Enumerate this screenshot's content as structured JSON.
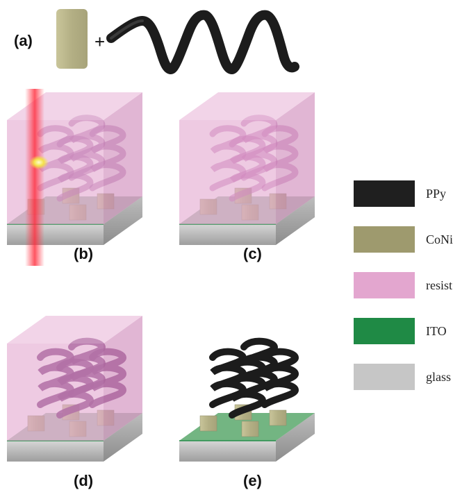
{
  "labels": {
    "a": "(a)",
    "b": "(b)",
    "c": "(c)",
    "d": "(d)",
    "e": "(e)",
    "plus": "+"
  },
  "legend": [
    {
      "name": "PPy",
      "color": "#1f1f1f"
    },
    {
      "name": "CoNi",
      "color": "#9e9a6e"
    },
    {
      "name": "resist",
      "color": "#e3a6cf"
    },
    {
      "name": "ITO",
      "color": "#1f8a45"
    },
    {
      "name": "glass",
      "color": "#c6c6c6"
    }
  ]
}
